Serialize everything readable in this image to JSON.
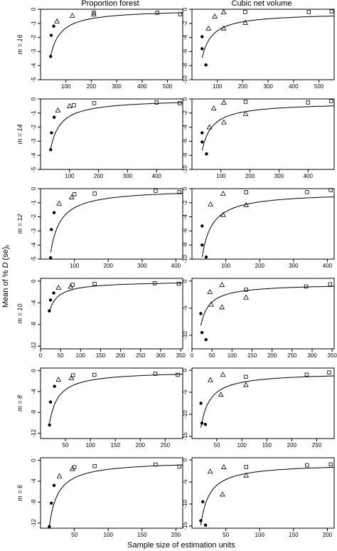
{
  "figure": {
    "col_titles": [
      "Proportion forest",
      "Cubic net volume"
    ],
    "ylabel_prefix": "Mean of %",
    "ylabel_d": "D",
    "ylabel_suffix": " (se)",
    "ylabel_sub": "r",
    "xlabel": "Sample size of estimation units"
  },
  "chart_data": [
    {
      "type": "scatter",
      "panel": "m16-proportion-forest",
      "row_label": "m = 16",
      "column": "Proportion forest",
      "xlim": [
        0,
        560
      ],
      "ylim": [
        -5,
        0
      ],
      "xticks": [
        100,
        200,
        300,
        400,
        500
      ],
      "yticks": [
        0,
        -1,
        -2,
        -3,
        -4,
        -5
      ],
      "points": [
        {
          "x": 40,
          "y": -3.35,
          "marker": "filled"
        },
        {
          "x": 42,
          "y": -1.85,
          "marker": "filled"
        },
        {
          "x": 52,
          "y": -1.2,
          "marker": "filled"
        },
        {
          "x": 65,
          "y": -0.85,
          "marker": "triangle"
        },
        {
          "x": 125,
          "y": -0.45,
          "marker": "triangle"
        },
        {
          "x": 210,
          "y": -0.35,
          "marker": "triangle"
        },
        {
          "x": 210,
          "y": -0.25,
          "marker": "square"
        },
        {
          "x": 460,
          "y": -0.25,
          "marker": "square"
        },
        {
          "x": 550,
          "y": -0.35,
          "marker": "square"
        }
      ],
      "curve": {
        "a": -3.3,
        "b": -0.007,
        "c": 40
      }
    },
    {
      "type": "scatter",
      "panel": "m16-cubic-net-volume",
      "row_label": "m = 16",
      "column": "Cubic net volume",
      "xlim": [
        0,
        560
      ],
      "ylim": [
        -10,
        0
      ],
      "xticks": [
        100,
        200,
        300,
        400,
        500
      ],
      "yticks": [
        0,
        -2,
        -4,
        -6,
        -8,
        -10
      ],
      "points": [
        {
          "x": 40,
          "y": -3.9,
          "marker": "filled"
        },
        {
          "x": 40,
          "y": -5.6,
          "marker": "filled"
        },
        {
          "x": 55,
          "y": -7.9,
          "marker": "filled"
        },
        {
          "x": 65,
          "y": -2.7,
          "marker": "triangle"
        },
        {
          "x": 90,
          "y": -1.0,
          "marker": "triangle"
        },
        {
          "x": 125,
          "y": -0.4,
          "marker": "triangle"
        },
        {
          "x": 125,
          "y": -2.7,
          "marker": "triangle"
        },
        {
          "x": 210,
          "y": -1.9,
          "marker": "triangle"
        },
        {
          "x": 210,
          "y": -0.4,
          "marker": "square"
        },
        {
          "x": 460,
          "y": -0.4,
          "marker": "square"
        },
        {
          "x": 550,
          "y": -0.3,
          "marker": "square"
        }
      ],
      "curve": {
        "a": -6.4,
        "b": -0.5,
        "c": 40
      }
    },
    {
      "type": "scatter",
      "panel": "m14-proportion-forest",
      "row_label": "m = 14",
      "column": "Proportion forest",
      "xlim": [
        0,
        490
      ],
      "ylim": [
        -5,
        0
      ],
      "xticks": [
        100,
        200,
        300,
        400
      ],
      "yticks": [
        0,
        -1,
        -2,
        -3,
        -4,
        -5
      ],
      "points": [
        {
          "x": 35,
          "y": -3.6,
          "marker": "filled"
        },
        {
          "x": 38,
          "y": -2.4,
          "marker": "filled"
        },
        {
          "x": 47,
          "y": -1.3,
          "marker": "filled"
        },
        {
          "x": 60,
          "y": -0.8,
          "marker": "triangle"
        },
        {
          "x": 100,
          "y": -0.5,
          "marker": "triangle"
        },
        {
          "x": 115,
          "y": -0.45,
          "marker": "square"
        },
        {
          "x": 185,
          "y": -0.3,
          "marker": "square"
        },
        {
          "x": 400,
          "y": -0.25,
          "marker": "square"
        },
        {
          "x": 480,
          "y": -0.3,
          "marker": "square"
        }
      ],
      "curve": {
        "a": -3.5,
        "b": -0.008,
        "c": 35
      }
    },
    {
      "type": "scatter",
      "panel": "m14-cubic-net-volume",
      "row_label": "m = 14",
      "column": "Cubic net volume",
      "xlim": [
        0,
        490
      ],
      "ylim": [
        -10,
        0
      ],
      "xticks": [
        100,
        200,
        300,
        400
      ],
      "yticks": [
        0,
        -2,
        -4,
        -6,
        -8,
        -10
      ],
      "points": [
        {
          "x": 35,
          "y": -4.8,
          "marker": "filled"
        },
        {
          "x": 35,
          "y": -6.1,
          "marker": "filled"
        },
        {
          "x": 50,
          "y": -7.8,
          "marker": "filled"
        },
        {
          "x": 60,
          "y": -4.0,
          "marker": "triangle"
        },
        {
          "x": 75,
          "y": -1.3,
          "marker": "triangle"
        },
        {
          "x": 110,
          "y": -0.5,
          "marker": "triangle"
        },
        {
          "x": 110,
          "y": -3.3,
          "marker": "triangle"
        },
        {
          "x": 185,
          "y": -2.1,
          "marker": "triangle"
        },
        {
          "x": 185,
          "y": -0.4,
          "marker": "square"
        },
        {
          "x": 400,
          "y": -0.5,
          "marker": "square"
        },
        {
          "x": 480,
          "y": -0.3,
          "marker": "square"
        }
      ],
      "curve": {
        "a": -6.8,
        "b": -0.5,
        "c": 35
      }
    },
    {
      "type": "scatter",
      "panel": "m12-proportion-forest",
      "row_label": "m = 12",
      "column": "Proportion forest",
      "xlim": [
        0,
        420
      ],
      "ylim": [
        -5,
        0
      ],
      "xticks": [
        100,
        200,
        300,
        400
      ],
      "yticks": [
        0,
        -1,
        -2,
        -3,
        -4,
        -5
      ],
      "points": [
        {
          "x": 30,
          "y": -4.9,
          "marker": "filled"
        },
        {
          "x": 32,
          "y": -2.9,
          "marker": "filled"
        },
        {
          "x": 40,
          "y": -1.7,
          "marker": "filled"
        },
        {
          "x": 55,
          "y": -1.05,
          "marker": "triangle"
        },
        {
          "x": 92,
          "y": -0.6,
          "marker": "triangle"
        },
        {
          "x": 100,
          "y": -0.4,
          "marker": "square"
        },
        {
          "x": 160,
          "y": -0.35,
          "marker": "square"
        },
        {
          "x": 340,
          "y": -0.15,
          "marker": "square"
        },
        {
          "x": 410,
          "y": -0.25,
          "marker": "square"
        }
      ],
      "curve": {
        "a": -4.5,
        "b": -0.01,
        "c": 30
      }
    },
    {
      "type": "scatter",
      "panel": "m12-cubic-net-volume",
      "row_label": "m = 12",
      "column": "Cubic net volume",
      "xlim": [
        0,
        420
      ],
      "ylim": [
        -10,
        0
      ],
      "xticks": [
        100,
        200,
        300,
        400
      ],
      "yticks": [
        0,
        -2,
        -4,
        -6,
        -8,
        -10
      ],
      "points": [
        {
          "x": 30,
          "y": -5.3,
          "marker": "filled"
        },
        {
          "x": 30,
          "y": -8.0,
          "marker": "filled"
        },
        {
          "x": 42,
          "y": -9.7,
          "marker": "filled"
        },
        {
          "x": 55,
          "y": -2.2,
          "marker": "triangle"
        },
        {
          "x": 92,
          "y": -0.7,
          "marker": "triangle"
        },
        {
          "x": 92,
          "y": -3.7,
          "marker": "triangle"
        },
        {
          "x": 160,
          "y": -2.3,
          "marker": "triangle"
        },
        {
          "x": 160,
          "y": -0.5,
          "marker": "square"
        },
        {
          "x": 340,
          "y": -0.5,
          "marker": "square"
        },
        {
          "x": 410,
          "y": -0.2,
          "marker": "square"
        }
      ],
      "curve": {
        "a": -9.2,
        "b": -0.5,
        "c": 30
      }
    },
    {
      "type": "scatter",
      "panel": "m10-proportion-forest",
      "row_label": "m = 10",
      "column": "Proportion forest",
      "xlim": [
        0,
        355
      ],
      "ylim": [
        -12.5,
        0.5
      ],
      "xticks": [
        0,
        50,
        100,
        150,
        200,
        250,
        300,
        350
      ],
      "yticks": [
        0,
        -4,
        -8,
        -12
      ],
      "points": [
        {
          "x": 22,
          "y": -5.5,
          "marker": "filled"
        },
        {
          "x": 25,
          "y": -3.5,
          "marker": "filled"
        },
        {
          "x": 33,
          "y": -2.2,
          "marker": "filled"
        },
        {
          "x": 45,
          "y": -1.2,
          "marker": "triangle"
        },
        {
          "x": 75,
          "y": -1.0,
          "marker": "triangle"
        },
        {
          "x": 80,
          "y": -0.7,
          "marker": "square"
        },
        {
          "x": 135,
          "y": -0.5,
          "marker": "square"
        },
        {
          "x": 285,
          "y": -0.4,
          "marker": "square"
        },
        {
          "x": 345,
          "y": -0.5,
          "marker": "square"
        }
      ],
      "curve": {
        "a": -5.6,
        "b": -0.02,
        "c": 22
      }
    },
    {
      "type": "scatter",
      "panel": "m10-cubic-net-volume",
      "row_label": "m = 10",
      "column": "Cubic net volume",
      "xlim": [
        0,
        355
      ],
      "ylim": [
        -12.5,
        0.5
      ],
      "xticks": [
        0,
        50,
        100,
        150,
        200,
        250,
        300,
        350
      ],
      "yticks": [
        0,
        -5,
        -10
      ],
      "points": [
        {
          "x": 22,
          "y": -6.0,
          "marker": "filled"
        },
        {
          "x": 25,
          "y": -9.5,
          "marker": "filled"
        },
        {
          "x": 35,
          "y": -10.8,
          "marker": "filled"
        },
        {
          "x": 45,
          "y": -2.0,
          "marker": "triangle"
        },
        {
          "x": 48,
          "y": -4.3,
          "marker": "triangle"
        },
        {
          "x": 75,
          "y": -0.7,
          "marker": "triangle"
        },
        {
          "x": 75,
          "y": -4.8,
          "marker": "triangle"
        },
        {
          "x": 135,
          "y": -3.0,
          "marker": "triangle"
        },
        {
          "x": 135,
          "y": -1.6,
          "marker": "square"
        },
        {
          "x": 285,
          "y": -1.0,
          "marker": "square"
        },
        {
          "x": 345,
          "y": -0.6,
          "marker": "square"
        }
      ],
      "curve": {
        "a": -7.7,
        "b": -0.5,
        "c": 22
      }
    },
    {
      "type": "scatter",
      "panel": "m8-proportion-forest",
      "row_label": "m = 8",
      "column": "Proportion forest",
      "xlim": [
        0,
        285
      ],
      "ylim": [
        -13,
        0.5
      ],
      "xticks": [
        50,
        100,
        150,
        200,
        250
      ],
      "yticks": [
        0,
        -4,
        -8,
        -12
      ],
      "points": [
        {
          "x": 18,
          "y": -10.4,
          "marker": "filled"
        },
        {
          "x": 20,
          "y": -6.0,
          "marker": "filled"
        },
        {
          "x": 28,
          "y": -3.0,
          "marker": "filled"
        },
        {
          "x": 36,
          "y": -1.7,
          "marker": "triangle"
        },
        {
          "x": 62,
          "y": -1.4,
          "marker": "triangle"
        },
        {
          "x": 65,
          "y": -0.9,
          "marker": "square"
        },
        {
          "x": 108,
          "y": -0.8,
          "marker": "square"
        },
        {
          "x": 230,
          "y": -0.6,
          "marker": "square"
        },
        {
          "x": 275,
          "y": -0.8,
          "marker": "square"
        }
      ],
      "curve": {
        "a": -10.0,
        "b": -0.05,
        "c": 18
      }
    },
    {
      "type": "scatter",
      "panel": "m8-cubic-net-volume",
      "row_label": "m = 8",
      "column": "Cubic net volume",
      "xlim": [
        0,
        285
      ],
      "ylim": [
        -15.5,
        0.5
      ],
      "xticks": [
        50,
        100,
        150,
        200,
        250
      ],
      "yticks": [
        0,
        -5,
        -10,
        -15
      ],
      "points": [
        {
          "x": 18,
          "y": -7.5,
          "marker": "filled"
        },
        {
          "x": 20,
          "y": -12.0,
          "marker": "filled"
        },
        {
          "x": 27,
          "y": -12.3,
          "marker": "filled"
        },
        {
          "x": 37,
          "y": -2.2,
          "marker": "triangle"
        },
        {
          "x": 58,
          "y": -5.5,
          "marker": "triangle"
        },
        {
          "x": 62,
          "y": -1.0,
          "marker": "triangle"
        },
        {
          "x": 108,
          "y": -3.3,
          "marker": "triangle"
        },
        {
          "x": 108,
          "y": -1.5,
          "marker": "square"
        },
        {
          "x": 230,
          "y": -1.0,
          "marker": "square"
        },
        {
          "x": 275,
          "y": -0.5,
          "marker": "square"
        }
      ],
      "curve": {
        "a": -12.5,
        "b": -0.5,
        "c": 18
      }
    },
    {
      "type": "scatter",
      "panel": "m6-proportion-forest",
      "row_label": "m = 6",
      "column": "Proportion forest",
      "xlim": [
        0,
        210
      ],
      "ylim": [
        -13,
        0.5
      ],
      "xticks": [
        50,
        100,
        150,
        200
      ],
      "yticks": [
        0,
        -4,
        -8,
        -12
      ],
      "points": [
        {
          "x": 13,
          "y": -12.7,
          "marker": "filled"
        },
        {
          "x": 16,
          "y": -8.2,
          "marker": "filled"
        },
        {
          "x": 20,
          "y": -4.8,
          "marker": "filled"
        },
        {
          "x": 28,
          "y": -3.0,
          "marker": "triangle"
        },
        {
          "x": 47,
          "y": -1.6,
          "marker": "triangle"
        },
        {
          "x": 50,
          "y": -1.3,
          "marker": "square"
        },
        {
          "x": 80,
          "y": -1.1,
          "marker": "square"
        },
        {
          "x": 170,
          "y": -0.8,
          "marker": "square"
        },
        {
          "x": 205,
          "y": -1.2,
          "marker": "square"
        }
      ],
      "curve": {
        "a": -12.5,
        "b": -0.1,
        "c": 13
      }
    },
    {
      "type": "scatter",
      "panel": "m6-cubic-net-volume",
      "row_label": "m = 6",
      "column": "Cubic net volume",
      "xlim": [
        0,
        210
      ],
      "ylim": [
        -15.5,
        0.5
      ],
      "xticks": [
        50,
        100,
        150,
        200
      ],
      "yticks": [
        0,
        -5,
        -10,
        -15
      ],
      "points": [
        {
          "x": 13,
          "y": -13.8,
          "marker": "filled"
        },
        {
          "x": 16,
          "y": -9.5,
          "marker": "filled"
        },
        {
          "x": 20,
          "y": -14.8,
          "marker": "filled"
        },
        {
          "x": 27,
          "y": -2.6,
          "marker": "triangle"
        },
        {
          "x": 45,
          "y": -7.8,
          "marker": "triangle"
        },
        {
          "x": 47,
          "y": -1.6,
          "marker": "triangle"
        },
        {
          "x": 80,
          "y": -3.5,
          "marker": "triangle"
        },
        {
          "x": 80,
          "y": -1.6,
          "marker": "square"
        },
        {
          "x": 170,
          "y": -1.2,
          "marker": "square"
        },
        {
          "x": 205,
          "y": -1.0,
          "marker": "square"
        }
      ],
      "curve": {
        "a": -14.0,
        "b": -0.8,
        "c": 13
      }
    }
  ]
}
